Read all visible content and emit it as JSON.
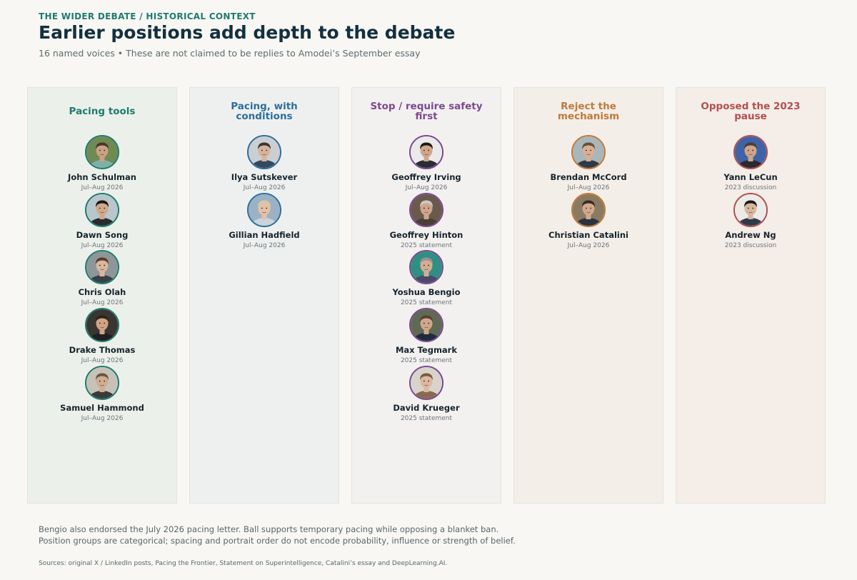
{
  "header": {
    "kicker": "THE WIDER DEBATE / HISTORICAL CONTEXT",
    "title": "Earlier positions add depth to the debate",
    "subtitle": "16 named voices • These are not claimed to be replies to Amodei’s September essay"
  },
  "columns": [
    {
      "heading": "Pacing tools",
      "color": "#1e7b70",
      "background": "#ecf0ea",
      "people": [
        {
          "name": "John Schulman",
          "date": "Jul–Aug 2026",
          "skin": "#caa184",
          "hair": "#4a3527",
          "bg": "#6f8a52",
          "shirt": "#7fb0a8"
        },
        {
          "name": "Dawn Song",
          "date": "Jul–Aug 2026",
          "skin": "#d2a88b",
          "hair": "#1c1714",
          "bg": "#b9c6cc",
          "shirt": "#2a2a2e"
        },
        {
          "name": "Chris Olah",
          "date": "Jul–Aug 2026",
          "skin": "#d9b6a0",
          "hair": "#5b3b28",
          "bg": "#8d9698",
          "shirt": "#384048"
        },
        {
          "name": "Drake Thomas",
          "date": "Jul–Aug 2026",
          "skin": "#cfa486",
          "hair": "#2e231c",
          "bg": "#3a3530",
          "shirt": "#1f1f22"
        },
        {
          "name": "Samuel Hammond",
          "date": "Jul–Aug 2026",
          "skin": "#d0ac92",
          "hair": "#6a5444",
          "bg": "#c7c2b8",
          "shirt": "#3a3a38"
        }
      ]
    },
    {
      "heading": "Pacing, with conditions",
      "color": "#2c6f9a",
      "background": "#eef0f0",
      "people": [
        {
          "name": "Ilya Sutskever",
          "date": "Jul–Aug 2026",
          "skin": "#d6b49c",
          "hair": "#3b3633",
          "bg": "#cbced2",
          "shirt": "#34495e"
        },
        {
          "name": "Gillian Hadfield",
          "date": "Jul–Aug 2026",
          "skin": "#e3c2a8",
          "hair": "#d9c6a5",
          "bg": "#9bb2c4",
          "shirt": "#c9d4dc"
        }
      ]
    },
    {
      "heading": "Stop / require safety first",
      "color": "#7a4a8f",
      "background": "#f3f0f0",
      "people": [
        {
          "name": "Geoffrey Irving",
          "date": "Jul–Aug 2026",
          "skin": "#d2a58a",
          "hair": "#201a17",
          "bg": "#eaeaea",
          "shirt": "#2a2d33"
        },
        {
          "name": "Geoffrey Hinton",
          "date": "2025 statement",
          "skin": "#cfa58e",
          "hair": "#cfc8c0",
          "bg": "#6a5a4c",
          "shirt": "#4a3e36"
        },
        {
          "name": "Yoshua Bengio",
          "date": "2025 statement",
          "skin": "#d3ad96",
          "hair": "#9a9390",
          "bg": "#2f8f83",
          "shirt": "#4a4a66"
        },
        {
          "name": "Max Tegmark",
          "date": "2025 statement",
          "skin": "#cfa78b",
          "hair": "#5a4030",
          "bg": "#5e6a52",
          "shirt": "#1f2a3a"
        },
        {
          "name": "David Krueger",
          "date": "2025 statement",
          "skin": "#dcb8a0",
          "hair": "#7a5a3e",
          "bg": "#d8d4cc",
          "shirt": "#8a6a4e"
        }
      ]
    },
    {
      "heading": "Reject the mechanism",
      "color": "#c0793a",
      "background": "#f4eee8",
      "people": [
        {
          "name": "Brendan McCord",
          "date": "Jul–Aug 2026",
          "skin": "#d8b096",
          "hair": "#6a4e36",
          "bg": "#a9b6ba",
          "shirt": "#2d3a48"
        },
        {
          "name": "Christian Catalini",
          "date": "Jul–Aug 2026",
          "skin": "#d1a98e",
          "hair": "#3a2a20",
          "bg": "#8a7a62",
          "shirt": "#2a3440"
        }
      ]
    },
    {
      "heading": "Opposed the 2023 pause",
      "color": "#b0504f",
      "background": "#f4ede8",
      "people": [
        {
          "name": "Yann LeCun",
          "date": "2023 discussion",
          "skin": "#cfa488",
          "hair": "#4a3e38",
          "bg": "#3f63a8",
          "shirt": "#2a2a30"
        },
        {
          "name": "Andrew Ng",
          "date": "2023 discussion",
          "skin": "#d8b89c",
          "hair": "#1c1a1a",
          "bg": "#ecebe8",
          "shirt": "#2f3a4a"
        }
      ]
    }
  ],
  "footer": {
    "note_line1": "Bengio also endorsed the July 2026 pacing letter. Ball supports temporary pacing while opposing a blanket ban.",
    "note_line2": "Position groups are categorical; spacing and portrait order do not encode probability, influence or strength of belief.",
    "sources": "Sources: original X / LinkedIn posts, Pacing the Frontier, Statement on Superintelligence, Catalini’s essay and DeepLearning.AI."
  }
}
